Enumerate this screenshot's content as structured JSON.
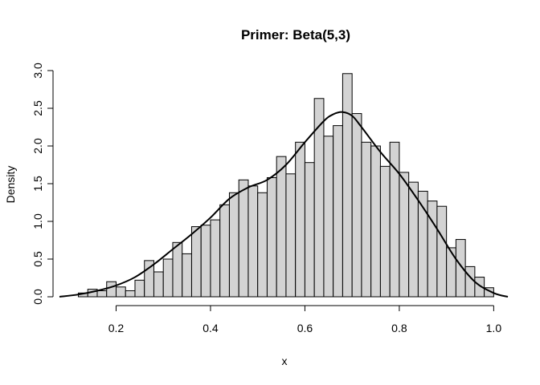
{
  "chart_data": {
    "type": "bar",
    "title": "Primer: Beta(5,3)",
    "xlabel": "x",
    "ylabel": "Density",
    "xlim": [
      0.08,
      1.03
    ],
    "ylim": [
      0,
      3.0
    ],
    "xticks": [
      "0.2",
      "0.4",
      "0.6",
      "0.8",
      "1.0"
    ],
    "yticks": [
      "0.0",
      "0.5",
      "1.0",
      "1.5",
      "2.0",
      "2.5",
      "3.0"
    ],
    "histogram": {
      "bin_width": 0.02,
      "bin_starts": [
        0.12,
        0.14,
        0.16,
        0.18,
        0.2,
        0.22,
        0.24,
        0.26,
        0.28,
        0.3,
        0.32,
        0.34,
        0.36,
        0.38,
        0.4,
        0.42,
        0.44,
        0.46,
        0.48,
        0.5,
        0.52,
        0.54,
        0.56,
        0.58,
        0.6,
        0.62,
        0.64,
        0.66,
        0.68,
        0.7,
        0.72,
        0.74,
        0.76,
        0.78,
        0.8,
        0.82,
        0.84,
        0.86,
        0.88,
        0.9,
        0.92,
        0.94,
        0.96,
        0.98
      ],
      "density": [
        0.05,
        0.1,
        0.08,
        0.2,
        0.13,
        0.08,
        0.22,
        0.48,
        0.33,
        0.5,
        0.72,
        0.57,
        0.93,
        0.95,
        1.02,
        1.22,
        1.38,
        1.55,
        1.47,
        1.38,
        1.58,
        1.86,
        1.63,
        2.05,
        1.78,
        2.63,
        2.13,
        2.27,
        2.96,
        2.43,
        2.05,
        2.0,
        1.73,
        2.05,
        1.65,
        1.52,
        1.4,
        1.27,
        1.2,
        0.65,
        0.76,
        0.4,
        0.26,
        0.12
      ]
    },
    "density_curve": {
      "x": [
        0.08,
        0.12,
        0.16,
        0.2,
        0.24,
        0.28,
        0.32,
        0.36,
        0.4,
        0.44,
        0.48,
        0.52,
        0.56,
        0.6,
        0.64,
        0.66,
        0.68,
        0.7,
        0.72,
        0.76,
        0.8,
        0.84,
        0.88,
        0.92,
        0.96,
        1.0,
        1.03
      ],
      "y": [
        0.0,
        0.03,
        0.08,
        0.15,
        0.26,
        0.43,
        0.63,
        0.83,
        1.05,
        1.3,
        1.45,
        1.55,
        1.75,
        2.05,
        2.33,
        2.42,
        2.45,
        2.4,
        2.25,
        1.92,
        1.63,
        1.28,
        0.9,
        0.5,
        0.2,
        0.05,
        0.0
      ]
    },
    "colors": {
      "bar_fill": "#d3d3d3",
      "bar_stroke": "#000000",
      "curve": "#000000"
    },
    "grid": false,
    "legend": "none"
  }
}
